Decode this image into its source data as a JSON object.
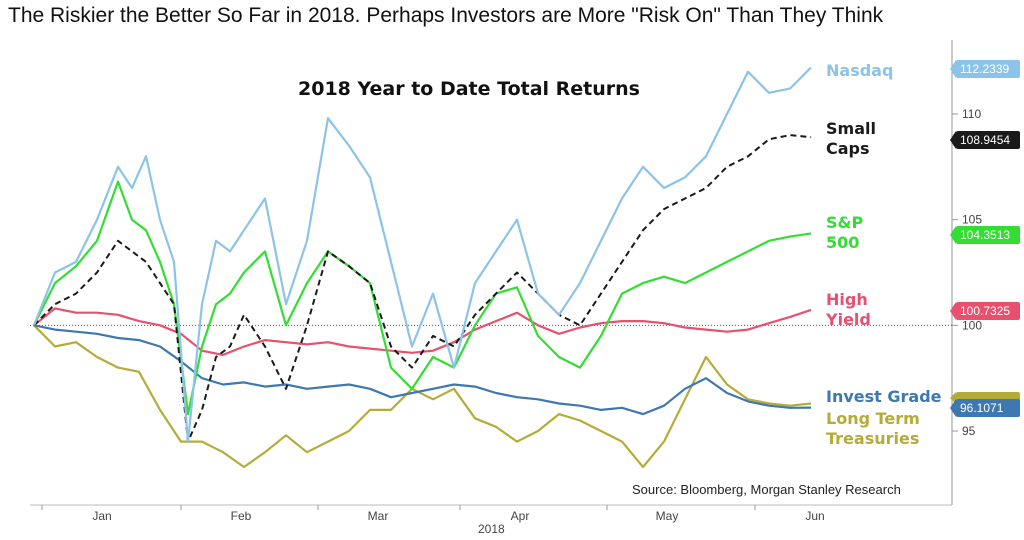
{
  "headline": "The Riskier the Better So Far in 2018. Perhaps Investors are More \"Risk On\" Than They Think",
  "chart_data": {
    "type": "line",
    "title": "2018  Year to Date Total Returns",
    "xlabel": "2018",
    "x_ticks": [
      "Jan",
      "Feb",
      "Mar",
      "Apr",
      "May",
      "Jun"
    ],
    "y_ticks": [
      95,
      100,
      105,
      110
    ],
    "ylim": [
      91.5,
      113.5
    ],
    "xlim": [
      0,
      112
    ],
    "baseline": 100,
    "source": "Source: Bloomberg, Morgan Stanley Research",
    "colors": {
      "nasdaq": "#8cc3e8",
      "smallcaps": "#1a1a1a",
      "sp500": "#33dd33",
      "highyield": "#e8506e",
      "investgrade": "#3e78b0",
      "treasuries": "#b5ac38"
    },
    "series": [
      {
        "key": "nasdaq",
        "name": "Nasdaq",
        "last_label": "112.2339",
        "x": [
          0,
          3,
          6,
          9,
          12,
          14,
          16,
          18,
          20,
          22,
          24,
          26,
          28,
          30,
          33,
          36,
          39,
          42,
          45,
          48,
          51,
          54,
          57,
          60,
          63,
          66,
          69,
          72,
          75,
          78,
          81,
          84,
          87,
          90,
          93,
          96,
          99,
          102,
          105,
          108,
          111
        ],
        "y": [
          100,
          102.5,
          103,
          105,
          107.5,
          106.5,
          108,
          105,
          103,
          94.5,
          101,
          104,
          103.5,
          104.5,
          106,
          101,
          104,
          109.8,
          108.5,
          107,
          103,
          99,
          101.5,
          98,
          102,
          103.5,
          105,
          101.5,
          100.5,
          102,
          104,
          106,
          107.5,
          106.5,
          107,
          108,
          110,
          112,
          111,
          111.2,
          112.2
        ]
      },
      {
        "key": "smallcaps",
        "name": "Small Caps",
        "last_label": "108.9454",
        "x": [
          0,
          3,
          6,
          9,
          12,
          14,
          16,
          18,
          20,
          22,
          24,
          26,
          28,
          30,
          33,
          36,
          39,
          42,
          45,
          48,
          51,
          54,
          57,
          60,
          63,
          66,
          69,
          72,
          75,
          78,
          81,
          84,
          87,
          90,
          93,
          96,
          99,
          102,
          105,
          108,
          111
        ],
        "y": [
          100,
          101,
          101.5,
          102.5,
          104,
          103.5,
          103,
          102,
          101,
          94.5,
          96,
          98.5,
          99,
          100.5,
          99,
          97,
          100,
          103.5,
          102.8,
          102,
          99,
          98,
          99.5,
          99,
          100.5,
          101.5,
          102.5,
          101.5,
          100.5,
          100,
          101.5,
          103,
          104.5,
          105.5,
          106,
          106.5,
          107.5,
          108,
          108.8,
          109,
          108.9
        ]
      },
      {
        "key": "sp500",
        "name": "S&P 500",
        "last_label": "104.3513",
        "x": [
          0,
          3,
          6,
          9,
          12,
          14,
          16,
          18,
          20,
          22,
          24,
          26,
          28,
          30,
          33,
          36,
          39,
          42,
          45,
          48,
          51,
          54,
          57,
          60,
          63,
          66,
          69,
          72,
          75,
          78,
          81,
          84,
          87,
          90,
          93,
          96,
          99,
          102,
          105,
          108,
          111
        ],
        "y": [
          100,
          102,
          102.8,
          104,
          106.8,
          105,
          104.5,
          103,
          101,
          95.8,
          99,
          101,
          101.5,
          102.5,
          103.5,
          100,
          102,
          103.5,
          102.8,
          102,
          98,
          97,
          98.5,
          98,
          100,
          101.5,
          101.8,
          99.5,
          98.5,
          98,
          99.5,
          101.5,
          102,
          102.3,
          102,
          102.5,
          103,
          103.5,
          104,
          104.2,
          104.35
        ]
      },
      {
        "key": "highyield",
        "name": "High Yield",
        "last_label": "100.7325",
        "x": [
          0,
          3,
          6,
          9,
          12,
          15,
          18,
          21,
          24,
          27,
          30,
          33,
          36,
          39,
          42,
          45,
          48,
          51,
          54,
          57,
          60,
          63,
          66,
          69,
          72,
          75,
          78,
          81,
          84,
          87,
          90,
          93,
          96,
          99,
          102,
          105,
          108,
          111
        ],
        "y": [
          100,
          100.8,
          100.6,
          100.6,
          100.5,
          100.2,
          100,
          99.6,
          98.8,
          98.6,
          99,
          99.3,
          99.2,
          99.1,
          99.2,
          99,
          98.9,
          98.8,
          98.7,
          98.8,
          99.2,
          99.8,
          100.2,
          100.6,
          100,
          99.6,
          99.9,
          100.1,
          100.2,
          100.2,
          100.1,
          99.9,
          99.8,
          99.7,
          99.8,
          100.1,
          100.4,
          100.73
        ]
      },
      {
        "key": "investgrade",
        "name": "Invest Grade",
        "last_label": "96.1071",
        "x": [
          0,
          3,
          6,
          9,
          12,
          15,
          18,
          21,
          24,
          27,
          30,
          33,
          36,
          39,
          42,
          45,
          48,
          51,
          54,
          57,
          60,
          63,
          66,
          69,
          72,
          75,
          78,
          81,
          84,
          87,
          90,
          93,
          96,
          99,
          102,
          105,
          108,
          111
        ],
        "y": [
          100,
          99.8,
          99.7,
          99.6,
          99.4,
          99.3,
          99,
          98.3,
          97.5,
          97.2,
          97.3,
          97.1,
          97.2,
          97,
          97.1,
          97.2,
          97,
          96.6,
          96.8,
          97,
          97.2,
          97.1,
          96.8,
          96.6,
          96.5,
          96.3,
          96.2,
          96,
          96.1,
          95.8,
          96.2,
          97,
          97.5,
          96.8,
          96.4,
          96.2,
          96.1,
          96.11
        ]
      },
      {
        "key": "treasuries",
        "name": "Long Term Treasuries",
        "last_label": "",
        "x": [
          0,
          3,
          6,
          9,
          12,
          15,
          18,
          21,
          24,
          27,
          30,
          33,
          36,
          39,
          42,
          45,
          48,
          51,
          54,
          57,
          60,
          63,
          66,
          69,
          72,
          75,
          78,
          81,
          84,
          87,
          90,
          93,
          96,
          99,
          102,
          105,
          108,
          111
        ],
        "y": [
          100,
          99,
          99.2,
          98.5,
          98,
          97.8,
          96,
          94.5,
          94.5,
          94,
          93.3,
          94,
          94.8,
          94,
          94.5,
          95,
          96,
          96,
          97,
          96.5,
          97,
          95.6,
          95.2,
          94.5,
          95,
          95.8,
          95.5,
          95,
          94.5,
          93.3,
          94.5,
          96.5,
          98.5,
          97.2,
          96.5,
          96.3,
          96.2,
          96.3
        ]
      }
    ],
    "labels": {
      "nasdaq": [
        "Nasdaq"
      ],
      "smallcaps": [
        "Small",
        "Caps"
      ],
      "sp500": [
        "S&P",
        "500"
      ],
      "highyield": [
        "High",
        "Yield"
      ],
      "investgrade": [
        "Invest Grade"
      ],
      "treasuries": [
        "Long Term",
        "Treasuries"
      ]
    }
  }
}
